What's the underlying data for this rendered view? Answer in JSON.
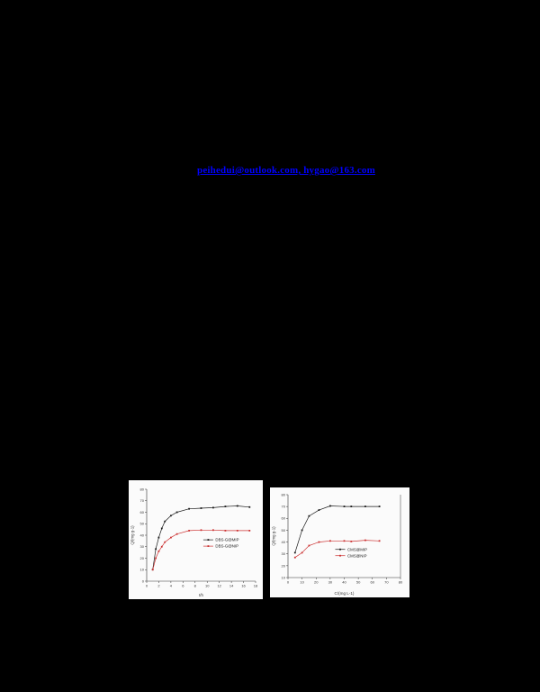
{
  "page": {
    "background": "#000000",
    "description": "Scanned article page rendered black; only hyperlink line and figure panels visible"
  },
  "email_line": {
    "text": "peihedui@outlook.com, hygao@163.com",
    "color": "#0101fe"
  },
  "chart_data": [
    {
      "type": "line",
      "title": "",
      "xlabel": "t/h",
      "ylabel": "Q/(mg g-1)",
      "xlim": [
        0,
        18
      ],
      "ylim": [
        0,
        80
      ],
      "xticks": [
        0,
        2,
        4,
        6,
        8,
        10,
        12,
        14,
        16,
        18
      ],
      "yticks": [
        0,
        10,
        20,
        30,
        40,
        50,
        60,
        70,
        80
      ],
      "grid": false,
      "right_spine": false,
      "legend_position": "center-right",
      "legend_frac": {
        "x": 0.52,
        "y": 0.55
      },
      "series": [
        {
          "name": "DBS-G@MIP",
          "color": "#1a1a1a",
          "marker": "square",
          "x": [
            1,
            1.5,
            2,
            2.5,
            3,
            4,
            5,
            7,
            9,
            11,
            13,
            15,
            17
          ],
          "y": [
            10,
            28,
            38,
            46,
            52,
            57,
            60,
            63,
            63.5,
            64,
            65,
            65.5,
            64.5
          ]
        },
        {
          "name": "DBS-G@NIP",
          "color": "#cc3333",
          "marker": "square",
          "x": [
            1,
            1.5,
            2,
            2.5,
            3,
            4,
            5,
            7,
            9,
            11,
            13,
            15,
            17
          ],
          "y": [
            10,
            20,
            26,
            30,
            34,
            38,
            41,
            44,
            44.5,
            44.5,
            44,
            44,
            44
          ]
        }
      ]
    },
    {
      "type": "line",
      "title": "",
      "xlabel": "C/(mg L-1)",
      "ylabel": "Q/(mg g-1)",
      "xlim": [
        0,
        80
      ],
      "ylim": [
        10,
        80
      ],
      "xticks": [
        0,
        10,
        20,
        30,
        40,
        50,
        60,
        70,
        80
      ],
      "yticks": [
        10,
        20,
        30,
        40,
        50,
        60,
        70,
        80
      ],
      "grid": false,
      "right_spine": true,
      "legend_position": "lower-right",
      "legend_frac": {
        "x": 0.42,
        "y": 0.66
      },
      "series": [
        {
          "name": "CMS@MIP",
          "color": "#1a1a1a",
          "marker": "square",
          "x": [
            5,
            10,
            15,
            22,
            30,
            40,
            45,
            55,
            65
          ],
          "y": [
            31,
            50,
            62,
            67,
            70.5,
            70,
            70,
            70,
            70
          ]
        },
        {
          "name": "CMS@NIP",
          "color": "#cc3333",
          "marker": "square",
          "x": [
            5,
            10,
            15,
            22,
            30,
            40,
            45,
            55,
            65
          ],
          "y": [
            27,
            31,
            37,
            40,
            41,
            41,
            40.5,
            41.5,
            41
          ]
        }
      ]
    }
  ]
}
